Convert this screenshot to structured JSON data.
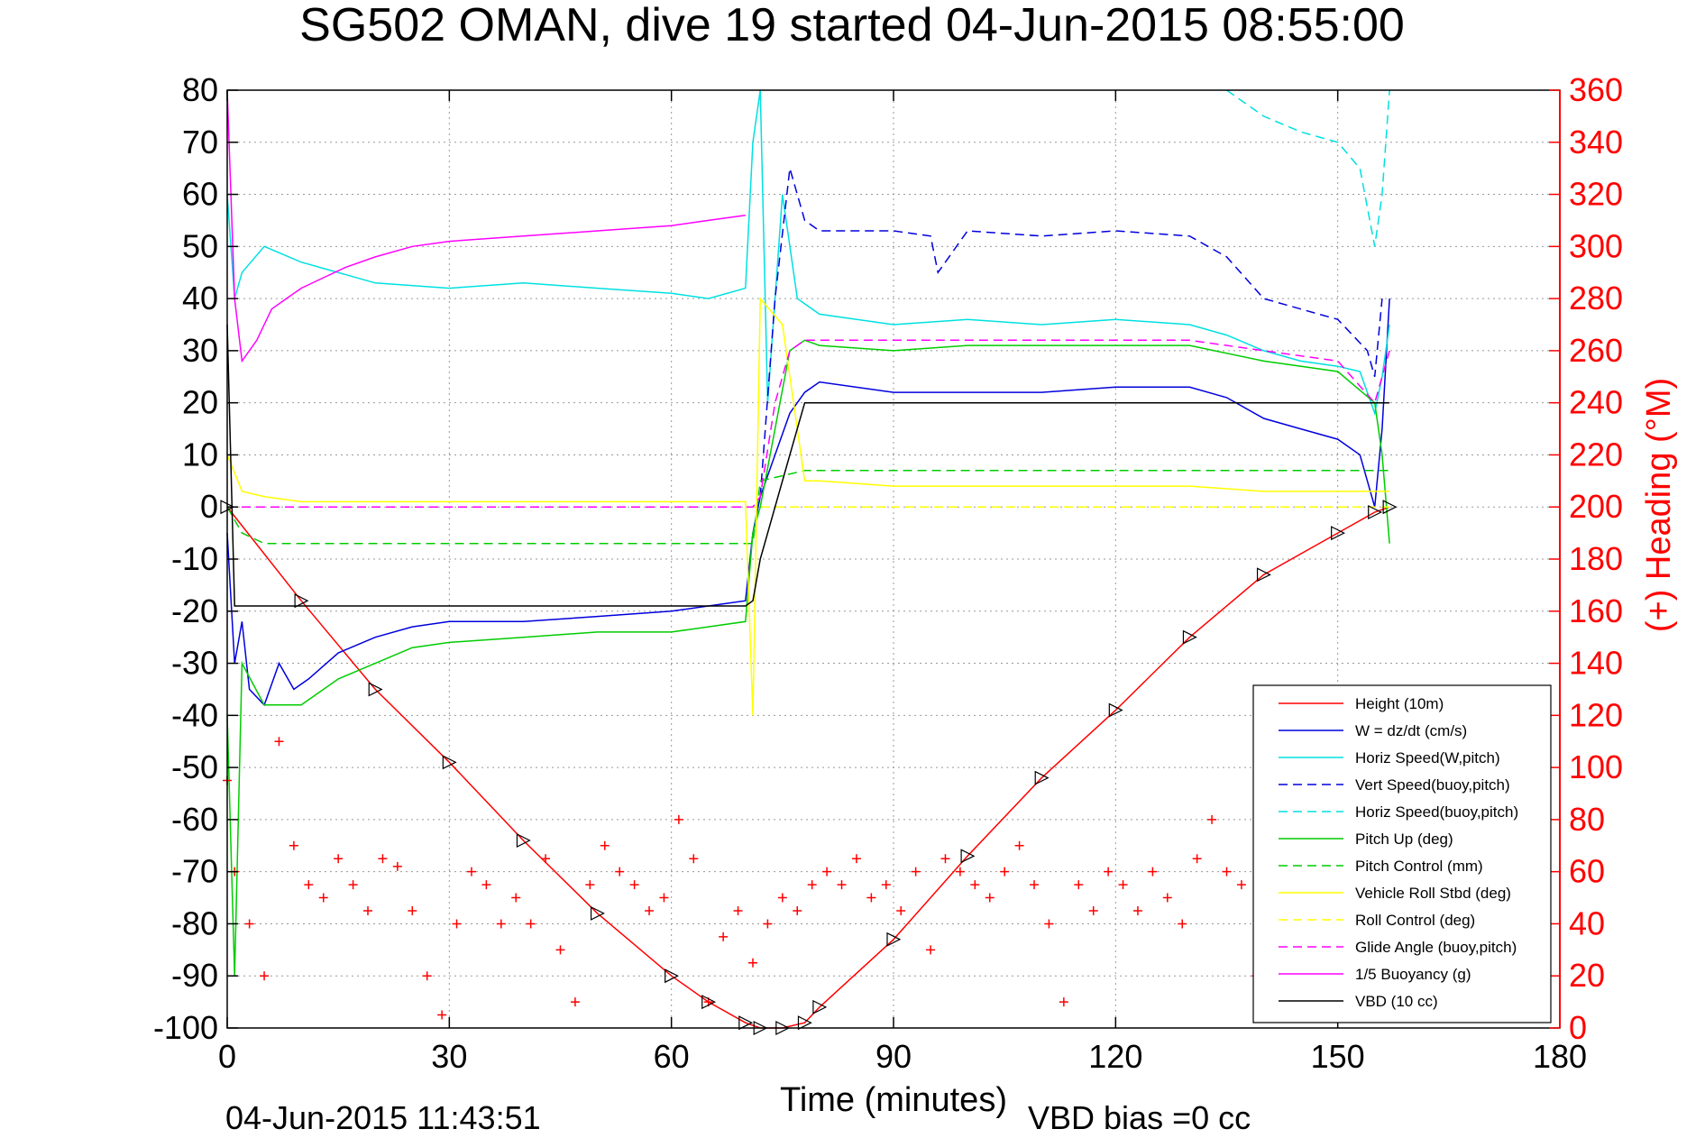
{
  "chart_data": {
    "type": "line",
    "title": "SG502 OMAN, dive 19 started 04-Jun-2015 08:55:00",
    "xlabel": "Time (minutes)",
    "ylabel": "",
    "y2label": "(+) Heading (°M)",
    "xlim": [
      0,
      180
    ],
    "ylim": [
      -100,
      80
    ],
    "y2lim": [
      0,
      360
    ],
    "xticks": [
      "0",
      "30",
      "60",
      "90",
      "120",
      "150",
      "180"
    ],
    "yticks": [
      "-100",
      "-90",
      "-80",
      "-70",
      "-60",
      "-50",
      "-40",
      "-30",
      "-20",
      "-10",
      "0",
      "10",
      "20",
      "30",
      "40",
      "50",
      "60",
      "70",
      "80"
    ],
    "y2ticks": [
      "0",
      "20",
      "40",
      "60",
      "80",
      "100",
      "120",
      "140",
      "160",
      "180",
      "200",
      "220",
      "240",
      "260",
      "280",
      "300",
      "320",
      "340",
      "360"
    ],
    "grid": true,
    "legend_position": "bottom-right",
    "footer_left": "04-Jun-2015 11:43:51",
    "footer_right": "VBD bias =0 cc",
    "series": [
      {
        "name": "Height (10m)",
        "color": "#ff0000",
        "style": "solid",
        "x": [
          0,
          10,
          20,
          30,
          40,
          50,
          60,
          65,
          70,
          72,
          75,
          78,
          80,
          90,
          100,
          110,
          120,
          130,
          140,
          150,
          155,
          157
        ],
        "y": [
          0,
          -18,
          -35,
          -49,
          -64,
          -78,
          -90,
          -95,
          -99,
          -100,
          -100,
          -99,
          -96,
          -83,
          -67,
          -52,
          -39,
          -25,
          -13,
          -5,
          -1,
          0
        ]
      },
      {
        "name": "W = dz/dt (cm/s)",
        "color": "#0000dd",
        "style": "solid",
        "x": [
          0,
          1,
          2,
          3,
          5,
          7,
          9,
          11,
          15,
          20,
          25,
          30,
          40,
          50,
          60,
          65,
          70,
          71,
          72,
          74,
          76,
          78,
          80,
          90,
          100,
          110,
          120,
          130,
          135,
          140,
          145,
          150,
          153,
          155,
          156,
          157
        ],
        "y": [
          -5,
          -30,
          -22,
          -35,
          -38,
          -30,
          -35,
          -33,
          -28,
          -25,
          -23,
          -22,
          -22,
          -21,
          -20,
          -19,
          -18,
          -5,
          2,
          10,
          18,
          22,
          24,
          22,
          22,
          22,
          23,
          23,
          21,
          17,
          15,
          13,
          10,
          0,
          15,
          40
        ]
      },
      {
        "name": "Horiz Speed(W,pitch)",
        "color": "#00e0e0",
        "style": "solid",
        "x": [
          0,
          1,
          2,
          5,
          10,
          20,
          30,
          40,
          50,
          60,
          65,
          70,
          71,
          72,
          73,
          75,
          77,
          80,
          90,
          100,
          110,
          120,
          130,
          135,
          140,
          145,
          150,
          153,
          155,
          156,
          157
        ],
        "y": [
          60,
          40,
          45,
          50,
          47,
          43,
          42,
          43,
          42,
          41,
          40,
          42,
          70,
          80,
          20,
          60,
          40,
          37,
          35,
          36,
          35,
          36,
          35,
          33,
          30,
          28,
          27,
          26,
          18,
          25,
          35
        ]
      },
      {
        "name": "Vert Speed(buoy,pitch)",
        "color": "#0000dd",
        "style": "dash",
        "x": [
          72,
          74,
          76,
          78,
          80,
          90,
          95,
          96,
          100,
          110,
          120,
          130,
          135,
          140,
          145,
          150,
          154,
          155,
          156
        ],
        "y": [
          2,
          40,
          65,
          55,
          53,
          53,
          52,
          45,
          53,
          52,
          53,
          52,
          48,
          40,
          38,
          36,
          30,
          25,
          40
        ]
      },
      {
        "name": "Horiz Speed(buoy,pitch)",
        "color": "#00e0e0",
        "style": "dash",
        "x": [
          135,
          140,
          145,
          150,
          153,
          155,
          156,
          157
        ],
        "y": [
          80,
          75,
          72,
          70,
          65,
          50,
          60,
          80
        ]
      },
      {
        "name": "Pitch Up (deg)",
        "color": "#00cc00",
        "style": "solid",
        "x": [
          0,
          1,
          2,
          5,
          10,
          15,
          20,
          25,
          30,
          40,
          50,
          60,
          65,
          70,
          71,
          72,
          74,
          76,
          78,
          80,
          90,
          100,
          110,
          120,
          130,
          140,
          150,
          155,
          156,
          157
        ],
        "y": [
          -40,
          -90,
          -30,
          -38,
          -38,
          -33,
          -30,
          -27,
          -26,
          -25,
          -24,
          -24,
          -23,
          -22,
          -5,
          0,
          15,
          30,
          32,
          31,
          30,
          31,
          31,
          31,
          31,
          28,
          26,
          20,
          10,
          -7
        ]
      },
      {
        "name": "Pitch Control (mm)",
        "color": "#00cc00",
        "style": "dash",
        "x": [
          0,
          2,
          5,
          10,
          20,
          30,
          40,
          50,
          60,
          70,
          71,
          72,
          78,
          80,
          90,
          100,
          110,
          120,
          130,
          140,
          150,
          157
        ],
        "y": [
          0,
          -5,
          -7,
          -7,
          -7,
          -7,
          -7,
          -7,
          -7,
          -7,
          -7,
          5,
          7,
          7,
          7,
          7,
          7,
          7,
          7,
          7,
          7,
          7
        ]
      },
      {
        "name": "Vehicle Roll Stbd (deg)",
        "color": "#ffff00",
        "style": "solid",
        "x": [
          0,
          2,
          5,
          10,
          20,
          30,
          40,
          50,
          60,
          70,
          71,
          72,
          75,
          78,
          80,
          90,
          100,
          110,
          120,
          130,
          140,
          150,
          157
        ],
        "y": [
          10,
          3,
          2,
          1,
          1,
          1,
          1,
          1,
          1,
          1,
          -40,
          40,
          35,
          5,
          5,
          4,
          4,
          4,
          4,
          4,
          3,
          3,
          3
        ]
      },
      {
        "name": "Roll Control (deg)",
        "color": "#ffff00",
        "style": "dash",
        "x": [
          0,
          5,
          10,
          20,
          30,
          40,
          50,
          60,
          70,
          80,
          90,
          100,
          110,
          120,
          130,
          140,
          150,
          157
        ],
        "y": [
          0,
          0,
          0,
          0,
          0,
          0,
          0,
          0,
          0,
          0,
          0,
          0,
          0,
          0,
          0,
          0,
          0,
          0
        ]
      },
      {
        "name": "Glide Angle (buoy,pitch)",
        "color": "#ff00ff",
        "style": "dash",
        "x": [
          0,
          10,
          20,
          30,
          40,
          50,
          60,
          70,
          71,
          72,
          74,
          76,
          78,
          80,
          90,
          100,
          110,
          120,
          130,
          140,
          150,
          155,
          157
        ],
        "y": [
          0,
          0,
          0,
          0,
          0,
          0,
          0,
          0,
          0,
          2,
          20,
          30,
          32,
          32,
          32,
          32,
          32,
          32,
          32,
          30,
          28,
          20,
          30
        ]
      },
      {
        "name": "1/5 Buoyancy (g)",
        "color": "#ff00ff",
        "style": "solid",
        "x": [
          0,
          1,
          2,
          4,
          6,
          8,
          10,
          13,
          16,
          20,
          25,
          30,
          40,
          50,
          60,
          65,
          70
        ],
        "y": [
          80,
          40,
          28,
          32,
          38,
          40,
          42,
          44,
          46,
          48,
          50,
          51,
          52,
          53,
          54,
          55,
          56
        ]
      },
      {
        "name": "VBD (10 cc)",
        "color": "#000000",
        "style": "solid",
        "x": [
          0,
          1,
          2,
          70,
          71,
          72,
          74,
          76,
          78,
          80,
          90,
          100,
          110,
          120,
          130,
          140,
          150,
          155,
          156,
          157
        ],
        "y": [
          35,
          -19,
          -19,
          -19,
          -18,
          -10,
          0,
          10,
          20,
          20,
          20,
          20,
          20,
          20,
          20,
          20,
          20,
          20,
          20,
          20
        ]
      },
      {
        "name": "Heading",
        "color": "#ff0000",
        "style": "markers",
        "axis": "right",
        "x": [
          0,
          1,
          3,
          5,
          7,
          9,
          11,
          13,
          15,
          17,
          19,
          21,
          23,
          25,
          27,
          29,
          31,
          33,
          35,
          37,
          39,
          41,
          43,
          45,
          47,
          49,
          51,
          53,
          55,
          57,
          59,
          61,
          63,
          65,
          67,
          69,
          71,
          73,
          75,
          77,
          79,
          81,
          83,
          85,
          87,
          89,
          91,
          93,
          95,
          97,
          99,
          101,
          103,
          105,
          107,
          109,
          111,
          113,
          115,
          117,
          119,
          121,
          123,
          125,
          127,
          129,
          131,
          133,
          135,
          137,
          139,
          141,
          143,
          145,
          147,
          149,
          151,
          153,
          155,
          157
        ],
        "y": [
          95,
          60,
          40,
          20,
          110,
          70,
          55,
          50,
          65,
          55,
          45,
          65,
          62,
          45,
          20,
          5,
          40,
          60,
          55,
          40,
          50,
          40,
          65,
          30,
          10,
          55,
          70,
          60,
          55,
          45,
          50,
          80,
          65,
          10,
          35,
          45,
          25,
          40,
          50,
          45,
          55,
          60,
          55,
          65,
          50,
          55,
          45,
          60,
          30,
          65,
          60,
          55,
          50,
          60,
          70,
          55,
          40,
          10,
          55,
          45,
          60,
          55,
          45,
          60,
          50,
          40,
          65,
          80,
          60,
          55,
          20,
          5,
          60,
          55,
          40,
          60,
          50,
          45,
          60,
          55
        ]
      }
    ]
  }
}
